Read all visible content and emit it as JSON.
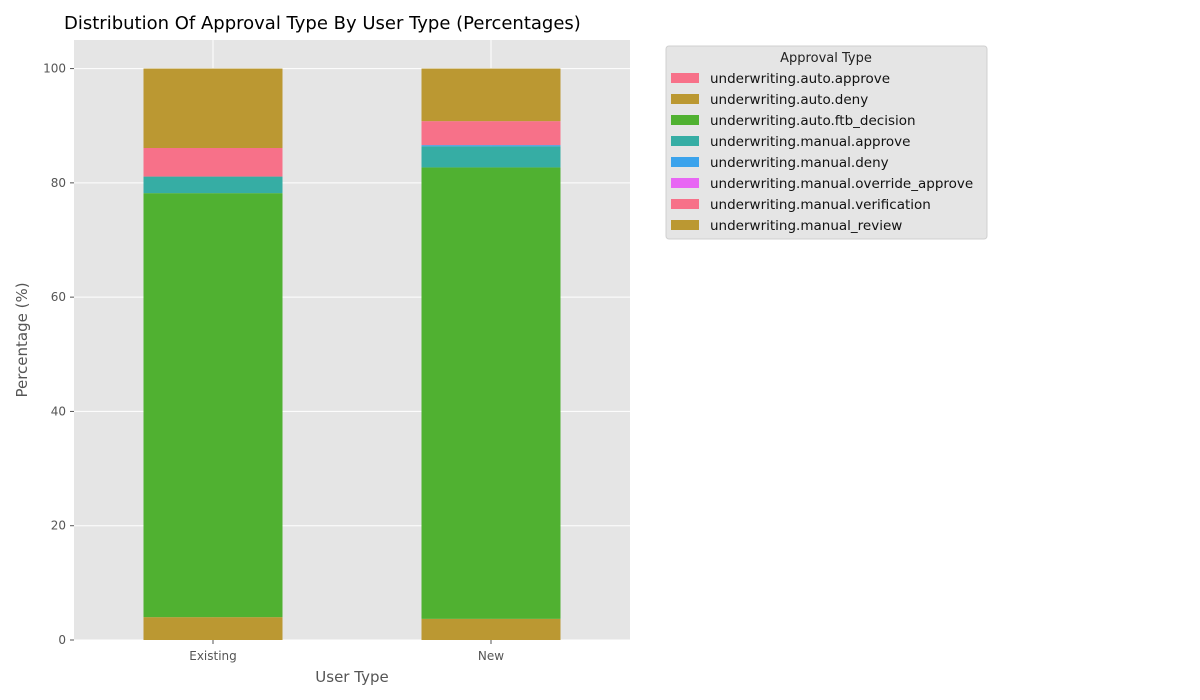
{
  "chart_data": {
    "type": "bar",
    "stacked": true,
    "title": "Distribution Of Approval Type By User Type (Percentages)",
    "xlabel": "User Type",
    "ylabel": "Percentage (%)",
    "ylim": [
      0,
      105
    ],
    "yticks": [
      0,
      20,
      40,
      60,
      80,
      100
    ],
    "grid": true,
    "categories": [
      "Existing",
      "New"
    ],
    "legend": {
      "title": "Approval Type",
      "placement": "outside-top-right"
    },
    "series": [
      {
        "name": "underwriting.auto.approve",
        "color": "#f77189",
        "values": [
          0,
          0
        ]
      },
      {
        "name": "underwriting.auto.deny",
        "color": "#bb9832",
        "values": [
          4.0,
          3.7
        ]
      },
      {
        "name": "underwriting.auto.ftb_decision",
        "color": "#50b131",
        "values": [
          74.2,
          79.0
        ]
      },
      {
        "name": "underwriting.manual.approve",
        "color": "#36ada4",
        "values": [
          2.9,
          3.7
        ]
      },
      {
        "name": "underwriting.manual.deny",
        "color": "#3ba3ec",
        "values": [
          0,
          0.2
        ]
      },
      {
        "name": "underwriting.manual.override_approve",
        "color": "#e866f4",
        "values": [
          0,
          0
        ]
      },
      {
        "name": "underwriting.manual.verification",
        "color": "#f77189",
        "values": [
          5.0,
          4.2
        ]
      },
      {
        "name": "underwriting.manual_review",
        "color": "#bb9832",
        "values": [
          13.9,
          9.2
        ]
      }
    ]
  }
}
